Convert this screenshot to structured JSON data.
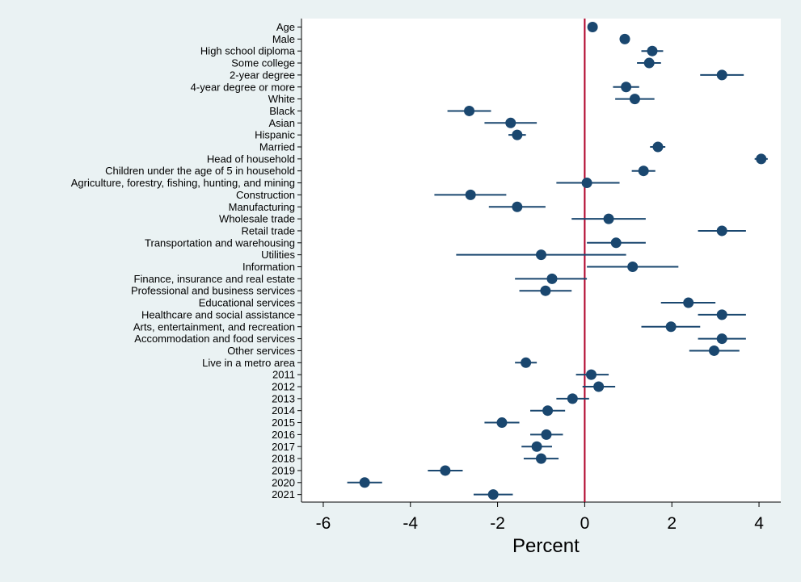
{
  "chart_data": {
    "type": "scatter",
    "subtype": "coefficient-plot",
    "xlabel": "Percent",
    "ylabel": "",
    "xlim": [
      -6.5,
      4.5
    ],
    "xticks": [
      -6,
      -4,
      -2,
      0,
      2,
      4
    ],
    "grid": false,
    "legend": "none",
    "reference_line": 0,
    "colors": {
      "point": "#1a476f",
      "ref_line": "#b00028",
      "background": "#eaf2f3",
      "plot_bg": "#ffffff"
    },
    "categories": [
      "Age",
      "Male",
      "High school diploma",
      "Some college",
      "2-year degree",
      "4-year degree or more",
      "White",
      "Black",
      "Asian",
      "Hispanic",
      "Married",
      "Head of household",
      "Children under the age of 5 in household",
      "Agriculture, forestry, fishing, hunting, and mining",
      "Construction",
      "Manufacturing",
      "Wholesale trade",
      "Retail trade",
      "Transportation and warehousing",
      "Utilities",
      "Information",
      "Finance, insurance and real estate",
      "Professional and business services",
      "Educational services",
      "Healthcare and social assistance",
      "Arts, entertainment, and recreation",
      "Accommodation and food services",
      "Other services",
      "Live in a metro area",
      "2011",
      "2012",
      "2013",
      "2014",
      "2015",
      "2016",
      "2017",
      "2018",
      "2019",
      "2020",
      "2021"
    ],
    "values": [
      0.18,
      0.92,
      1.55,
      1.48,
      3.15,
      0.95,
      1.15,
      -2.65,
      -1.7,
      -1.55,
      1.68,
      4.05,
      1.35,
      0.05,
      -2.62,
      -1.55,
      0.55,
      3.15,
      0.72,
      -1.0,
      1.1,
      -0.75,
      -0.9,
      2.38,
      3.15,
      1.98,
      3.15,
      2.97,
      -1.35,
      0.15,
      0.32,
      -0.28,
      -0.85,
      -1.9,
      -0.88,
      -1.1,
      -1.0,
      -3.2,
      -5.05,
      -2.1
    ],
    "ci_low": [
      0.12,
      0.8,
      1.3,
      1.2,
      2.65,
      0.65,
      0.7,
      -3.15,
      -2.3,
      -1.75,
      1.5,
      3.9,
      1.08,
      -0.65,
      -3.45,
      -2.2,
      -0.3,
      2.6,
      0.05,
      -2.95,
      0.05,
      -1.6,
      -1.5,
      1.75,
      2.6,
      1.3,
      2.6,
      2.4,
      -1.6,
      -0.2,
      -0.05,
      -0.65,
      -1.25,
      -2.3,
      -1.25,
      -1.45,
      -1.4,
      -3.6,
      -5.45,
      -2.55
    ],
    "ci_high": [
      0.24,
      1.04,
      1.8,
      1.75,
      3.65,
      1.25,
      1.6,
      -2.15,
      -1.1,
      -1.35,
      1.85,
      4.2,
      1.62,
      0.8,
      -1.8,
      -0.9,
      1.4,
      3.7,
      1.4,
      0.95,
      2.15,
      0.05,
      -0.3,
      3.0,
      3.7,
      2.65,
      3.7,
      3.55,
      -1.1,
      0.55,
      0.7,
      0.1,
      -0.45,
      -1.5,
      -0.5,
      -0.75,
      -0.6,
      -2.8,
      -4.65,
      -1.65
    ]
  }
}
